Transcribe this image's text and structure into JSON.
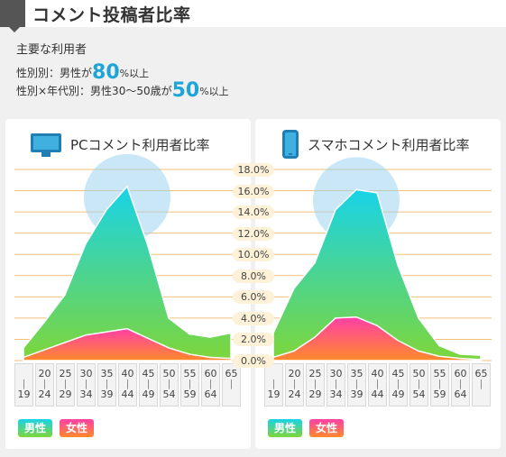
{
  "header": {
    "title": "コメント投稿者比率"
  },
  "summary": {
    "heading": "主要な利用者",
    "line1": {
      "prefix": "性別別：男性が",
      "value": "80",
      "suffix": "%以上"
    },
    "line2": {
      "prefix": "性別×年代別：男性30〜50歳が",
      "value": "50",
      "suffix": "%以上"
    }
  },
  "legend": {
    "male": "男性",
    "female": "女性"
  },
  "colors": {
    "male_top": "#18d3e8",
    "male_bottom": "#7ed63a",
    "female_top": "#ff3fa8",
    "female_bottom": "#ff8a2a",
    "gridline": "#f0c07a",
    "highlight": "#9fd4f0"
  },
  "chart_data": [
    {
      "type": "area",
      "title": "PCコメント利用者比率",
      "icon": "monitor-icon",
      "categories": [
        [
          "",
          "19"
        ],
        [
          "20",
          "24"
        ],
        [
          "25",
          "29"
        ],
        [
          "30",
          "34"
        ],
        [
          "35",
          "39"
        ],
        [
          "40",
          "44"
        ],
        [
          "45",
          "49"
        ],
        [
          "50",
          "54"
        ],
        [
          "55",
          "59"
        ],
        [
          "60",
          "64"
        ],
        [
          "65",
          ""
        ]
      ],
      "series": [
        {
          "name": "男性",
          "values": [
            1.2,
            3.6,
            6.2,
            11.0,
            14.2,
            16.4,
            10.8,
            4.0,
            2.5,
            2.2,
            2.6
          ]
        },
        {
          "name": "女性",
          "values": [
            0.3,
            1.0,
            1.7,
            2.4,
            2.7,
            3.0,
            2.1,
            1.2,
            0.6,
            0.3,
            0.2
          ]
        }
      ],
      "ylim": [
        0,
        18
      ],
      "yticks": [
        "0.0%",
        "2.0%",
        "4.0%",
        "6.0%",
        "8.0%",
        "10.0%",
        "12.0%",
        "14.0%",
        "16.0%",
        "18.0%"
      ],
      "grid": true,
      "legend": "bottom-left"
    },
    {
      "type": "area",
      "title": "スマホコメント利用者比率",
      "icon": "smartphone-icon",
      "categories": [
        [
          "",
          "19"
        ],
        [
          "20",
          "24"
        ],
        [
          "25",
          "29"
        ],
        [
          "30",
          "34"
        ],
        [
          "35",
          "39"
        ],
        [
          "40",
          "44"
        ],
        [
          "45",
          "49"
        ],
        [
          "50",
          "54"
        ],
        [
          "55",
          "59"
        ],
        [
          "60",
          "64"
        ],
        [
          "65",
          ""
        ]
      ],
      "series": [
        {
          "name": "男性",
          "values": [
            2.6,
            6.8,
            9.2,
            14.2,
            16.1,
            15.8,
            9.0,
            4.0,
            1.4,
            0.6,
            0.5
          ]
        },
        {
          "name": "女性",
          "values": [
            0.3,
            0.9,
            2.2,
            4.0,
            4.1,
            3.3,
            1.9,
            0.9,
            0.4,
            0.2,
            0.1
          ]
        }
      ],
      "ylim": [
        0,
        18
      ],
      "yticks": [
        "0.0%",
        "2.0%",
        "4.0%",
        "6.0%",
        "8.0%",
        "10.0%",
        "12.0%",
        "14.0%",
        "16.0%",
        "18.0%"
      ],
      "grid": true,
      "legend": "bottom-left"
    }
  ]
}
